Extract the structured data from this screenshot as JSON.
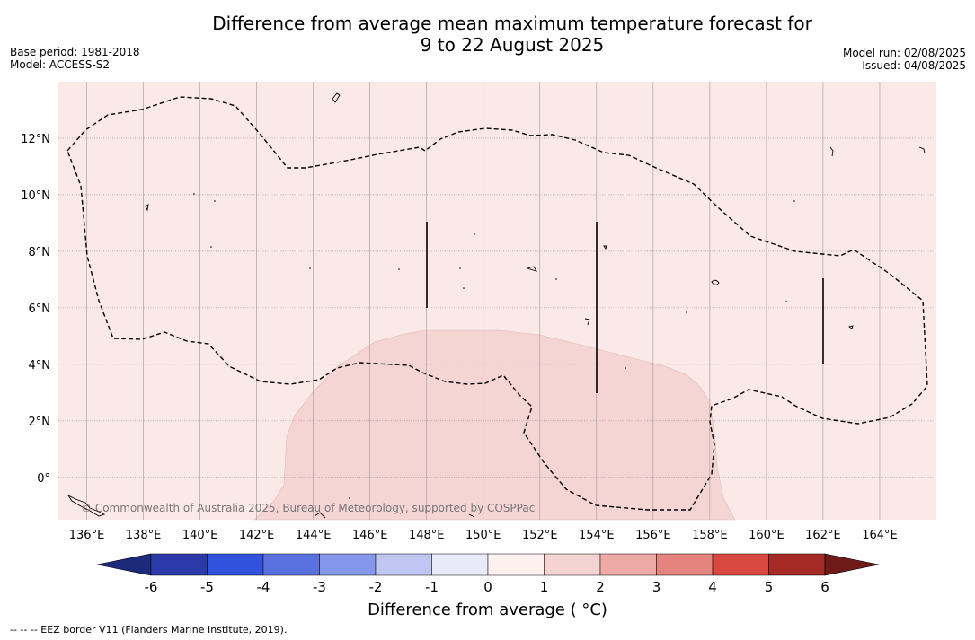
{
  "header": {
    "title_line1": "Difference from average mean maximum temperature forecast for",
    "title_line2": "9 to 22 August 2025",
    "base_period": "Base period: 1981-2018",
    "model": "Model: ACCESS-S2",
    "model_run": "Model run: 02/08/2025",
    "issued": "Issued: 04/08/2025"
  },
  "map": {
    "lon_range": [
      135,
      166
    ],
    "lat_range": [
      -1.5,
      14
    ],
    "lon_ticks": [
      136,
      138,
      140,
      142,
      144,
      146,
      148,
      150,
      152,
      154,
      156,
      158,
      160,
      162,
      164
    ],
    "lon_tick_labels": [
      "136°E",
      "138°E",
      "140°E",
      "142°E",
      "144°E",
      "146°E",
      "148°E",
      "150°E",
      "152°E",
      "154°E",
      "156°E",
      "158°E",
      "160°E",
      "162°E",
      "164°E"
    ],
    "lat_ticks": [
      0,
      2,
      4,
      6,
      8,
      10,
      12
    ],
    "lat_tick_labels": [
      "0°",
      "2°N",
      "4°N",
      "6°N",
      "8°N",
      "10°N",
      "12°N"
    ],
    "background_color": "#fbe9e8",
    "anomaly_region_color": "#f5d5d4",
    "copyright": "© Commonwealth of Australia 2025, Bureau of Meteorology, supported by COSPPac"
  },
  "colorbar": {
    "ticks": [
      "-6",
      "-5",
      "-4",
      "-3",
      "-2",
      "-1",
      "0",
      "1",
      "2",
      "3",
      "4",
      "5",
      "6"
    ],
    "colors": [
      "#2a3aa8",
      "#3152dc",
      "#5a72e0",
      "#8597ea",
      "#bfc6f2",
      "#e8eafa",
      "#fdf1f0",
      "#f5d3d2",
      "#edaaa6",
      "#e5847e",
      "#d84840",
      "#a62a26"
    ],
    "under_color": "#1d2a7a",
    "over_color": "#6e1a18",
    "label": "Difference from average ( °C)"
  },
  "footnote": "--  --  -- EEZ border V11 (Flanders Marine Institute, 2019)."
}
